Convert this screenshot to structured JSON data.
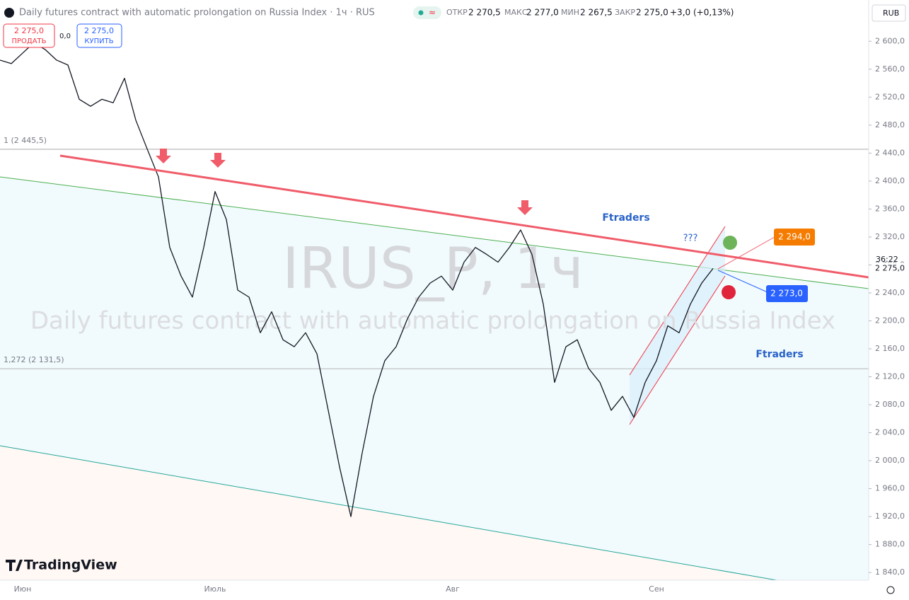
{
  "chart_data": {
    "type": "line",
    "header": {
      "title": "Daily futures contract with automatic prolongation on Russia Index · 1ч · RUS",
      "open_label": "ОТКР",
      "open": "2 270,5",
      "high_label": "МАКС",
      "high": "2 277,0",
      "low_label": "МИН",
      "low": "2 267,5",
      "close_label": "ЗАКР",
      "close": "2 275,0",
      "change": "+3,0 (+0,13%)"
    },
    "trade": {
      "sell_price": "2 275,0",
      "sell": "ПРОДАТЬ",
      "spread": "0,0",
      "buy_price": "2 275,0",
      "buy": "КУПИТЬ"
    },
    "currency": "RUB",
    "watermark": {
      "symbol": "IRUS_P, 1ч",
      "description": "Daily futures contract with automatic prolongation on Russia Index"
    },
    "logo": "TradingView",
    "color": "#131722",
    "categories": [
      null,
      null,
      "Июн",
      null,
      null,
      null,
      null,
      null,
      null,
      null,
      null,
      null,
      null,
      null,
      null,
      null,
      null,
      null,
      null,
      "Июль",
      null,
      null,
      null,
      null,
      null,
      null,
      null,
      null,
      null,
      null,
      null,
      null,
      null,
      null,
      null,
      null,
      null,
      null,
      null,
      null,
      "Авг",
      null,
      null,
      null,
      null,
      null,
      null,
      null,
      null,
      null,
      null,
      null,
      null,
      null,
      null,
      null,
      null,
      null,
      "Сен",
      null,
      null,
      null,
      null,
      null
    ],
    "values": [
      2573,
      2568,
      2583,
      2598,
      2588,
      2573,
      2566,
      2517,
      2507,
      2517,
      2512,
      2547,
      2487,
      2446,
      2406,
      2305,
      2264,
      2234,
      2305,
      2385,
      2345,
      2244,
      2234,
      2183,
      2213,
      2173,
      2163,
      2183,
      2153,
      2072,
      1991,
      1920,
      2011,
      2092,
      2143,
      2163,
      2203,
      2234,
      2254,
      2264,
      2244,
      2284,
      2305,
      2295,
      2284,
      2305,
      2330,
      2295,
      2224,
      2112,
      2163,
      2173,
      2132,
      2112,
      2072,
      2092,
      2062,
      2112,
      2143,
      2193,
      2183,
      2224,
      2254,
      2275
    ],
    "ylim": [
      1829,
      2659
    ],
    "yticks": [
      {
        "value": 1840,
        "label": "1 840,0"
      },
      {
        "value": 1880,
        "label": "1 880,0"
      },
      {
        "value": 1920,
        "label": "1 920,0"
      },
      {
        "value": 1960,
        "label": "1 960,0"
      },
      {
        "value": 2000,
        "label": "2 000,0"
      },
      {
        "value": 2040,
        "label": "2 040,0"
      },
      {
        "value": 2080,
        "label": "2 080,0"
      },
      {
        "value": 2120,
        "label": "2 120,0"
      },
      {
        "value": 2160,
        "label": "2 160,0"
      },
      {
        "value": 2200,
        "label": "2 200,0"
      },
      {
        "value": 2240,
        "label": "2 240,0"
      },
      {
        "value": 2280,
        "label": "2 280,0"
      },
      {
        "value": 2320,
        "label": "2 320,0"
      },
      {
        "value": 2360,
        "label": "2 360,0"
      },
      {
        "value": 2400,
        "label": "2 400,0"
      },
      {
        "value": 2440,
        "label": "2 440,0"
      },
      {
        "value": 2480,
        "label": "2 480,0"
      },
      {
        "value": 2520,
        "label": "2 520,0"
      },
      {
        "value": 2560,
        "label": "2 560,0"
      },
      {
        "value": 2600,
        "label": "2 600,0"
      }
    ],
    "last_price": {
      "value": 2275,
      "label": "2 275,0"
    },
    "countdown": "36:22",
    "levels": [
      {
        "value": 2445.5,
        "label": "1 (2 445,5)"
      },
      {
        "value": 2131.5,
        "label": "1,272 (2 131,5)"
      }
    ],
    "annotations": {
      "brand_1": "Ftraders",
      "brand_2": "Ftraders",
      "question": "???",
      "target_up": "2 294,0",
      "target_down": "2 273,0"
    }
  }
}
